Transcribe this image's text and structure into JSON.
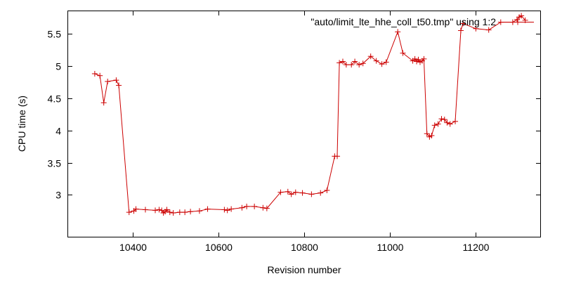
{
  "chart_data": {
    "type": "line",
    "xlabel": "Revision number",
    "ylabel": "CPU time (s)",
    "xlim": [
      10250,
      11350
    ],
    "ylim": [
      2.35,
      5.85
    ],
    "xticks": [
      10400,
      10600,
      10800,
      11000,
      11200
    ],
    "xtick_labels": [
      "10400",
      "10600",
      "10800",
      "11000",
      "11200"
    ],
    "yticks": [
      3,
      3.5,
      4,
      4.5,
      5,
      5.5
    ],
    "ytick_labels": [
      "3",
      "3.5",
      "4",
      "4.5",
      "5",
      "5.5"
    ],
    "grid": false,
    "legend_position": "top-right",
    "series": [
      {
        "name": "\"auto/limit_lte_hhe_coll_t50.tmp\" using 1:2",
        "color": "#cc0000",
        "marker": "plus",
        "x": [
          10312,
          10324,
          10333,
          10342,
          10362,
          10368,
          10392,
          10403,
          10408,
          10430,
          10453,
          10462,
          10468,
          10472,
          10476,
          10480,
          10487,
          10495,
          10510,
          10522,
          10535,
          10556,
          10575,
          10614,
          10621,
          10630,
          10655,
          10666,
          10684,
          10704,
          10713,
          10745,
          10762,
          10770,
          10780,
          10796,
          10817,
          10838,
          10853,
          10871,
          10877,
          10882,
          10890,
          10898,
          10910,
          10918,
          10928,
          10937,
          10955,
          10968,
          10981,
          10991,
          11018,
          11030,
          11053,
          11058,
          11062,
          11066,
          11070,
          11075,
          11079,
          11086,
          11092,
          11097,
          11104,
          11112,
          11120,
          11127,
          11133,
          11140,
          11152,
          11165,
          11170,
          11200,
          11230,
          11258,
          11286,
          11296,
          11301,
          11306,
          11315
        ],
        "y": [
          4.88,
          4.85,
          4.43,
          4.76,
          4.78,
          4.7,
          2.73,
          2.75,
          2.78,
          2.77,
          2.76,
          2.77,
          2.76,
          2.72,
          2.74,
          2.77,
          2.73,
          2.72,
          2.73,
          2.73,
          2.74,
          2.75,
          2.78,
          2.77,
          2.76,
          2.78,
          2.8,
          2.82,
          2.82,
          2.8,
          2.79,
          3.04,
          3.05,
          3.01,
          3.04,
          3.03,
          3.01,
          3.03,
          3.07,
          3.6,
          3.6,
          5.05,
          5.07,
          5.02,
          5.02,
          5.07,
          5.02,
          5.04,
          5.15,
          5.08,
          5.03,
          5.06,
          5.53,
          5.2,
          5.08,
          5.11,
          5.07,
          5.1,
          5.06,
          5.08,
          5.11,
          3.95,
          3.9,
          3.92,
          4.08,
          4.1,
          4.18,
          4.17,
          4.12,
          4.1,
          4.14,
          5.55,
          5.66,
          5.58,
          5.56,
          5.68,
          5.68,
          5.72,
          5.76,
          5.78,
          5.71
        ]
      }
    ]
  }
}
